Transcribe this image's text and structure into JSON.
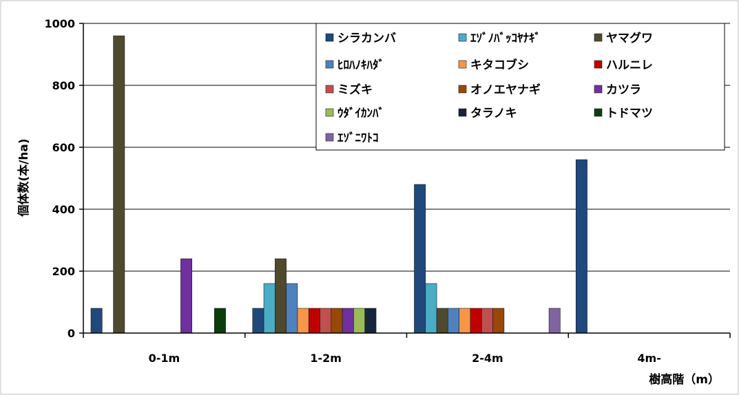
{
  "chart_data": {
    "type": "bar",
    "title": "",
    "xlabel": "樹高階（m）",
    "ylabel": "個体数(本/ha)",
    "categories": [
      "0-1m",
      "1-2m",
      "2-4m",
      "4m-"
    ],
    "ylim": [
      0,
      1000
    ],
    "yticks": [
      0,
      200,
      400,
      600,
      800,
      1000
    ],
    "grid": true,
    "legend_position": "top-right",
    "series": [
      {
        "name": "シラカンバ",
        "color": "#1F497D",
        "values": [
          80,
          80,
          480,
          560
        ]
      },
      {
        "name": "ｴｿﾞﾉﾊﾞｯｺﾔﾅｷﾞ",
        "color": "#4BACC6",
        "values": [
          0,
          160,
          160,
          0
        ]
      },
      {
        "name": "ヤマグワ",
        "color": "#4F4A2E",
        "values": [
          960,
          240,
          80,
          0
        ]
      },
      {
        "name": "ﾋﾛﾊﾉｷﾊﾀﾞ",
        "color": "#4F81BD",
        "values": [
          0,
          160,
          80,
          0
        ]
      },
      {
        "name": "キタコブシ",
        "color": "#F79646",
        "values": [
          0,
          80,
          80,
          0
        ]
      },
      {
        "name": "ハルニレ",
        "color": "#C00000",
        "values": [
          0,
          80,
          80,
          0
        ]
      },
      {
        "name": "ミズキ",
        "color": "#C0504D",
        "values": [
          0,
          80,
          80,
          0
        ]
      },
      {
        "name": "オノエヤナギ",
        "color": "#984807",
        "values": [
          0,
          80,
          80,
          0
        ]
      },
      {
        "name": "カツラ",
        "color": "#7030A0",
        "values": [
          240,
          80,
          0,
          0
        ]
      },
      {
        "name": "ｳﾀﾞｲｶﾝﾊﾞ",
        "color": "#9BBB59",
        "values": [
          0,
          80,
          0,
          0
        ]
      },
      {
        "name": "タラノキ",
        "color": "#17253D",
        "values": [
          0,
          80,
          0,
          0
        ]
      },
      {
        "name": "トドマツ",
        "color": "#0B3D0B",
        "values": [
          80,
          0,
          0,
          0
        ]
      },
      {
        "name": "ｴｿﾞﾆﾜﾄｺ",
        "color": "#8064A2",
        "values": [
          0,
          0,
          80,
          0
        ]
      }
    ]
  }
}
